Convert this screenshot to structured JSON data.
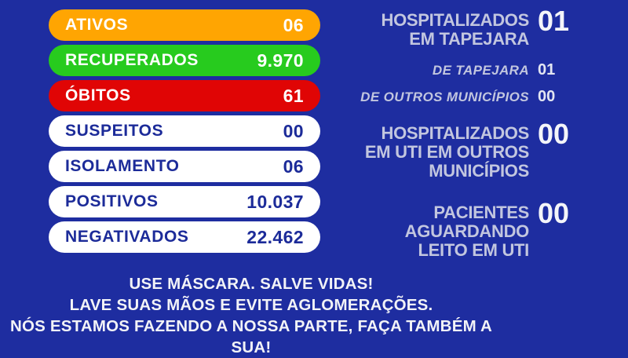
{
  "theme": {
    "background": "#1E2DA0",
    "pill_orange": "#FFA502",
    "pill_green": "#27CB1E",
    "pill_red": "#E00505",
    "pill_white_text": "#1C2B99",
    "heading_lavender": "#C2C6DF",
    "number_white": "#F4F5F9"
  },
  "stats": {
    "items": [
      {
        "label": "ATIVOS",
        "value": "06",
        "variant": "orange"
      },
      {
        "label": "RECUPERADOS",
        "value": "9.970",
        "variant": "green"
      },
      {
        "label": "ÓBITOS",
        "value": "61",
        "variant": "red"
      },
      {
        "label": "SUSPEITOS",
        "value": "00",
        "variant": "white"
      },
      {
        "label": "ISOLAMENTO",
        "value": "06",
        "variant": "white"
      },
      {
        "label": "POSITIVOS",
        "value": "10.037",
        "variant": "white"
      },
      {
        "label": "NEGATIVADOS",
        "value": "22.462",
        "variant": "white"
      }
    ]
  },
  "hospital": {
    "group1": {
      "line1": "HOSPITALIZADOS",
      "line2": "EM TAPEJARA",
      "value": "01",
      "sub": [
        {
          "label": "DE TAPEJARA",
          "value": "01"
        },
        {
          "label": "DE OUTROS MUNICÍPIOS",
          "value": "00"
        }
      ]
    },
    "group2": {
      "line1": "HOSPITALIZADOS",
      "line2": "EM UTI EM OUTROS",
      "line3": "MUNICÍPIOS",
      "value": "00"
    },
    "group3": {
      "line1": "PACIENTES",
      "line2": "AGUARDANDO",
      "line3": "LEITO EM UTI",
      "value": "00"
    }
  },
  "footer": {
    "line1": "USE MÁSCARA. SALVE VIDAS!",
    "line2": "LAVE SUAS MÃOS E EVITE AGLOMERAÇÕES.",
    "line3": "NÓS ESTAMOS FAZENDO A NOSSA PARTE, FAÇA TAMBÉM A SUA!"
  },
  "chart_data": {
    "type": "table",
    "title": "Painel COVID-19 Tapejara",
    "categories": [
      "ATIVOS",
      "RECUPERADOS",
      "ÓBITOS",
      "SUSPEITOS",
      "ISOLAMENTO",
      "POSITIVOS",
      "NEGATIVADOS",
      "HOSPITALIZADOS EM TAPEJARA",
      "HOSPITALIZADOS EM TAPEJARA — DE TAPEJARA",
      "HOSPITALIZADOS EM TAPEJARA — DE OUTROS MUNICÍPIOS",
      "HOSPITALIZADOS EM UTI EM OUTROS MUNICÍPIOS",
      "PACIENTES AGUARDANDO LEITO EM UTI"
    ],
    "values": [
      6,
      9970,
      61,
      0,
      6,
      10037,
      22462,
      1,
      1,
      0,
      0,
      0
    ]
  }
}
